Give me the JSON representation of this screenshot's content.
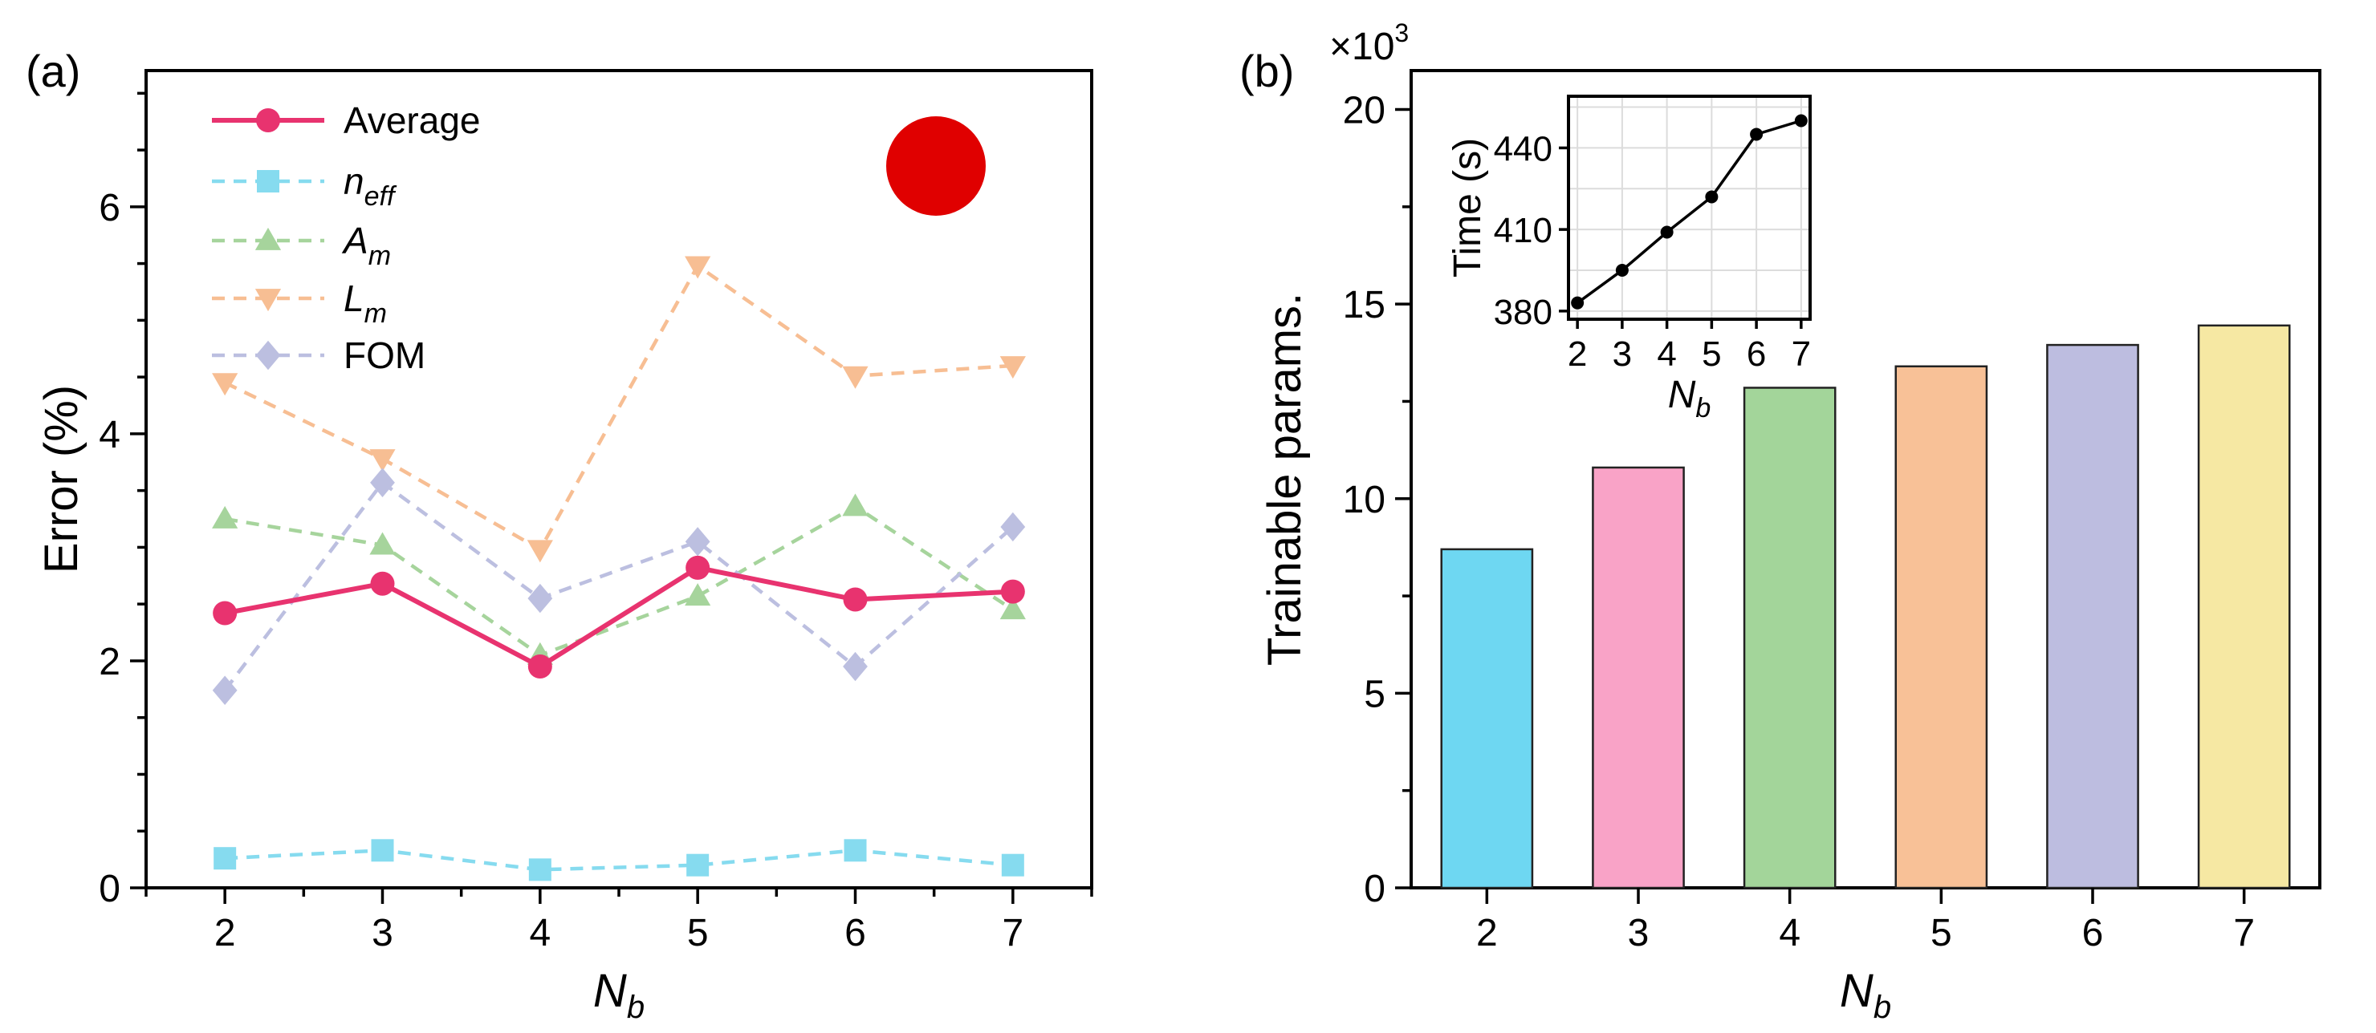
{
  "colors": {
    "average": "#e8336f",
    "neff": "#86dbef",
    "am": "#a6d49c",
    "lm": "#f7be93",
    "fom": "#bcbfe0",
    "marker_dot": "#e00000",
    "bars": [
      "#6ed7f2",
      "#f9a3c7",
      "#a3d59a",
      "#f8c197",
      "#bdbde0",
      "#f6e8a3"
    ]
  },
  "chart_data": [
    {
      "panel_label": "(a)",
      "type": "line",
      "xlabel": "N",
      "xlabel_sub": "b",
      "ylabel": "Error (%)",
      "x": [
        2,
        3,
        4,
        5,
        6,
        7
      ],
      "xticks": [
        "2",
        "3",
        "4",
        "5",
        "6",
        "7"
      ],
      "xlim": [
        1.5,
        7.5
      ],
      "ylim": [
        0,
        7.2
      ],
      "yticks": [
        0,
        2,
        4,
        6
      ],
      "ytick_labels": [
        "0",
        "2",
        "4",
        "6"
      ],
      "legend_position": "top-left",
      "series": [
        {
          "name": "Average",
          "name_main": "Average",
          "name_sub": "",
          "style": "solid",
          "marker": "circle",
          "values": [
            2.42,
            2.68,
            1.95,
            2.82,
            2.54,
            2.61
          ]
        },
        {
          "name": "n_eff",
          "name_main": "n",
          "name_sub": "eff",
          "style": "dashed",
          "marker": "square",
          "values": [
            0.26,
            0.33,
            0.16,
            0.2,
            0.33,
            0.2
          ]
        },
        {
          "name": "A_m",
          "name_main": "A",
          "name_sub": "m",
          "style": "dashed",
          "marker": "triangle-up",
          "values": [
            3.25,
            3.02,
            2.05,
            2.57,
            3.36,
            2.45
          ]
        },
        {
          "name": "L_m",
          "name_main": "L",
          "name_sub": "m",
          "style": "dashed",
          "marker": "triangle-down",
          "values": [
            4.45,
            3.78,
            2.98,
            5.48,
            4.51,
            4.6
          ]
        },
        {
          "name": "FOM",
          "name_main": "FOM",
          "name_sub": "",
          "style": "dashed",
          "marker": "diamond",
          "values": [
            1.74,
            3.57,
            2.55,
            3.05,
            1.95,
            3.18
          ]
        }
      ]
    },
    {
      "panel_label": "(b)",
      "type": "bar",
      "xlabel": "N",
      "xlabel_sub": "b",
      "ylabel": "Trainable params.",
      "multiplier_label": "×10",
      "multiplier_exp": "3",
      "categories": [
        "2",
        "3",
        "4",
        "5",
        "6",
        "7"
      ],
      "values": [
        8.7,
        10.8,
        12.85,
        13.4,
        13.95,
        14.45
      ],
      "ylim": [
        0,
        21
      ],
      "yticks": [
        0,
        5,
        10,
        15,
        20
      ],
      "ytick_labels": [
        "0",
        "5",
        "10",
        "15",
        "20"
      ]
    },
    {
      "panel_label": "(b) inset",
      "type": "line",
      "xlabel": "N",
      "xlabel_sub": "b",
      "ylabel": "Time (s)",
      "x": [
        2,
        3,
        4,
        5,
        6,
        7
      ],
      "xticks": [
        "2",
        "3",
        "4",
        "5",
        "6",
        "7"
      ],
      "xlim": [
        1.8,
        7.2
      ],
      "values": [
        383,
        395,
        409,
        422,
        445,
        450
      ],
      "ylim": [
        377,
        459
      ],
      "yticks": [
        380,
        410,
        440
      ],
      "ytick_labels": [
        "380",
        "410",
        "440"
      ],
      "grid": true
    }
  ]
}
